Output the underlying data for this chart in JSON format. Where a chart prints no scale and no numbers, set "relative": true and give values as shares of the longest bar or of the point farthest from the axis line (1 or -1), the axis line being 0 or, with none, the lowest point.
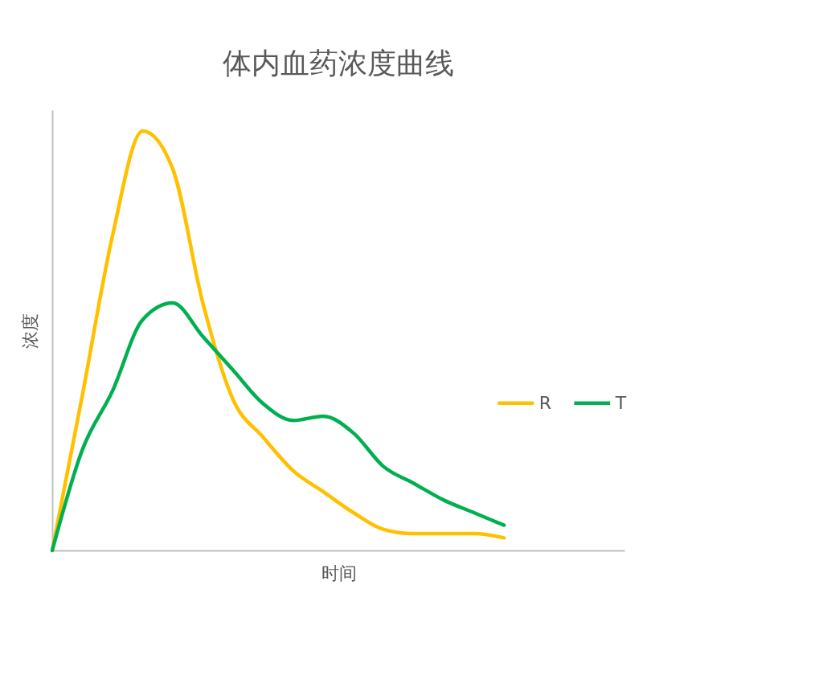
{
  "chart_data": {
    "type": "line",
    "title": "体内血药浓度曲线",
    "xlabel": "时间",
    "ylabel": "浓度",
    "relative": true,
    "legend": "right",
    "categories": [
      null,
      null,
      null,
      null,
      null,
      null,
      null,
      null,
      null,
      null,
      null,
      null,
      null,
      null,
      null,
      null,
      null,
      null,
      null,
      null
    ],
    "series": [
      {
        "name": "R",
        "color": "#ffc000",
        "values": [
          0,
          0.37,
          0.75,
          1,
          0.91,
          0.59,
          0.36,
          0.27,
          0.19,
          0.14,
          0.09,
          0.05,
          0.04,
          0.04,
          0.04,
          0.03,
          null,
          null,
          null,
          null
        ]
      },
      {
        "name": "T",
        "color": "#00b050",
        "values": [
          0,
          0.24,
          0.38,
          0.55,
          0.59,
          0.51,
          0.43,
          0.35,
          0.31,
          0.32,
          0.28,
          0.2,
          0.16,
          0.12,
          0.09,
          0.06,
          null,
          null,
          null,
          null
        ]
      }
    ]
  }
}
